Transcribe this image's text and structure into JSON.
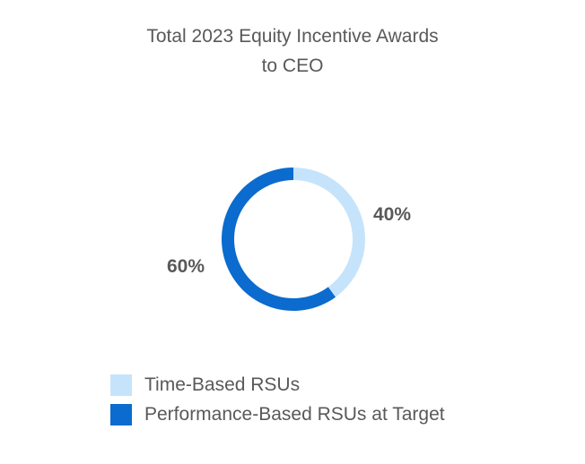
{
  "chart_data": {
    "type": "pie",
    "title_lines": [
      "Total 2023 Equity Incentive Awards",
      "to CEO"
    ],
    "categories": [
      "Time-Based RSUs",
      "Performance-Based RSUs at Target"
    ],
    "values": [
      40,
      60
    ],
    "data_labels": [
      "40%",
      "60%"
    ],
    "colors": [
      "#c5e4fb",
      "#0b6bce"
    ],
    "donut": true,
    "legend_position": "bottom"
  }
}
